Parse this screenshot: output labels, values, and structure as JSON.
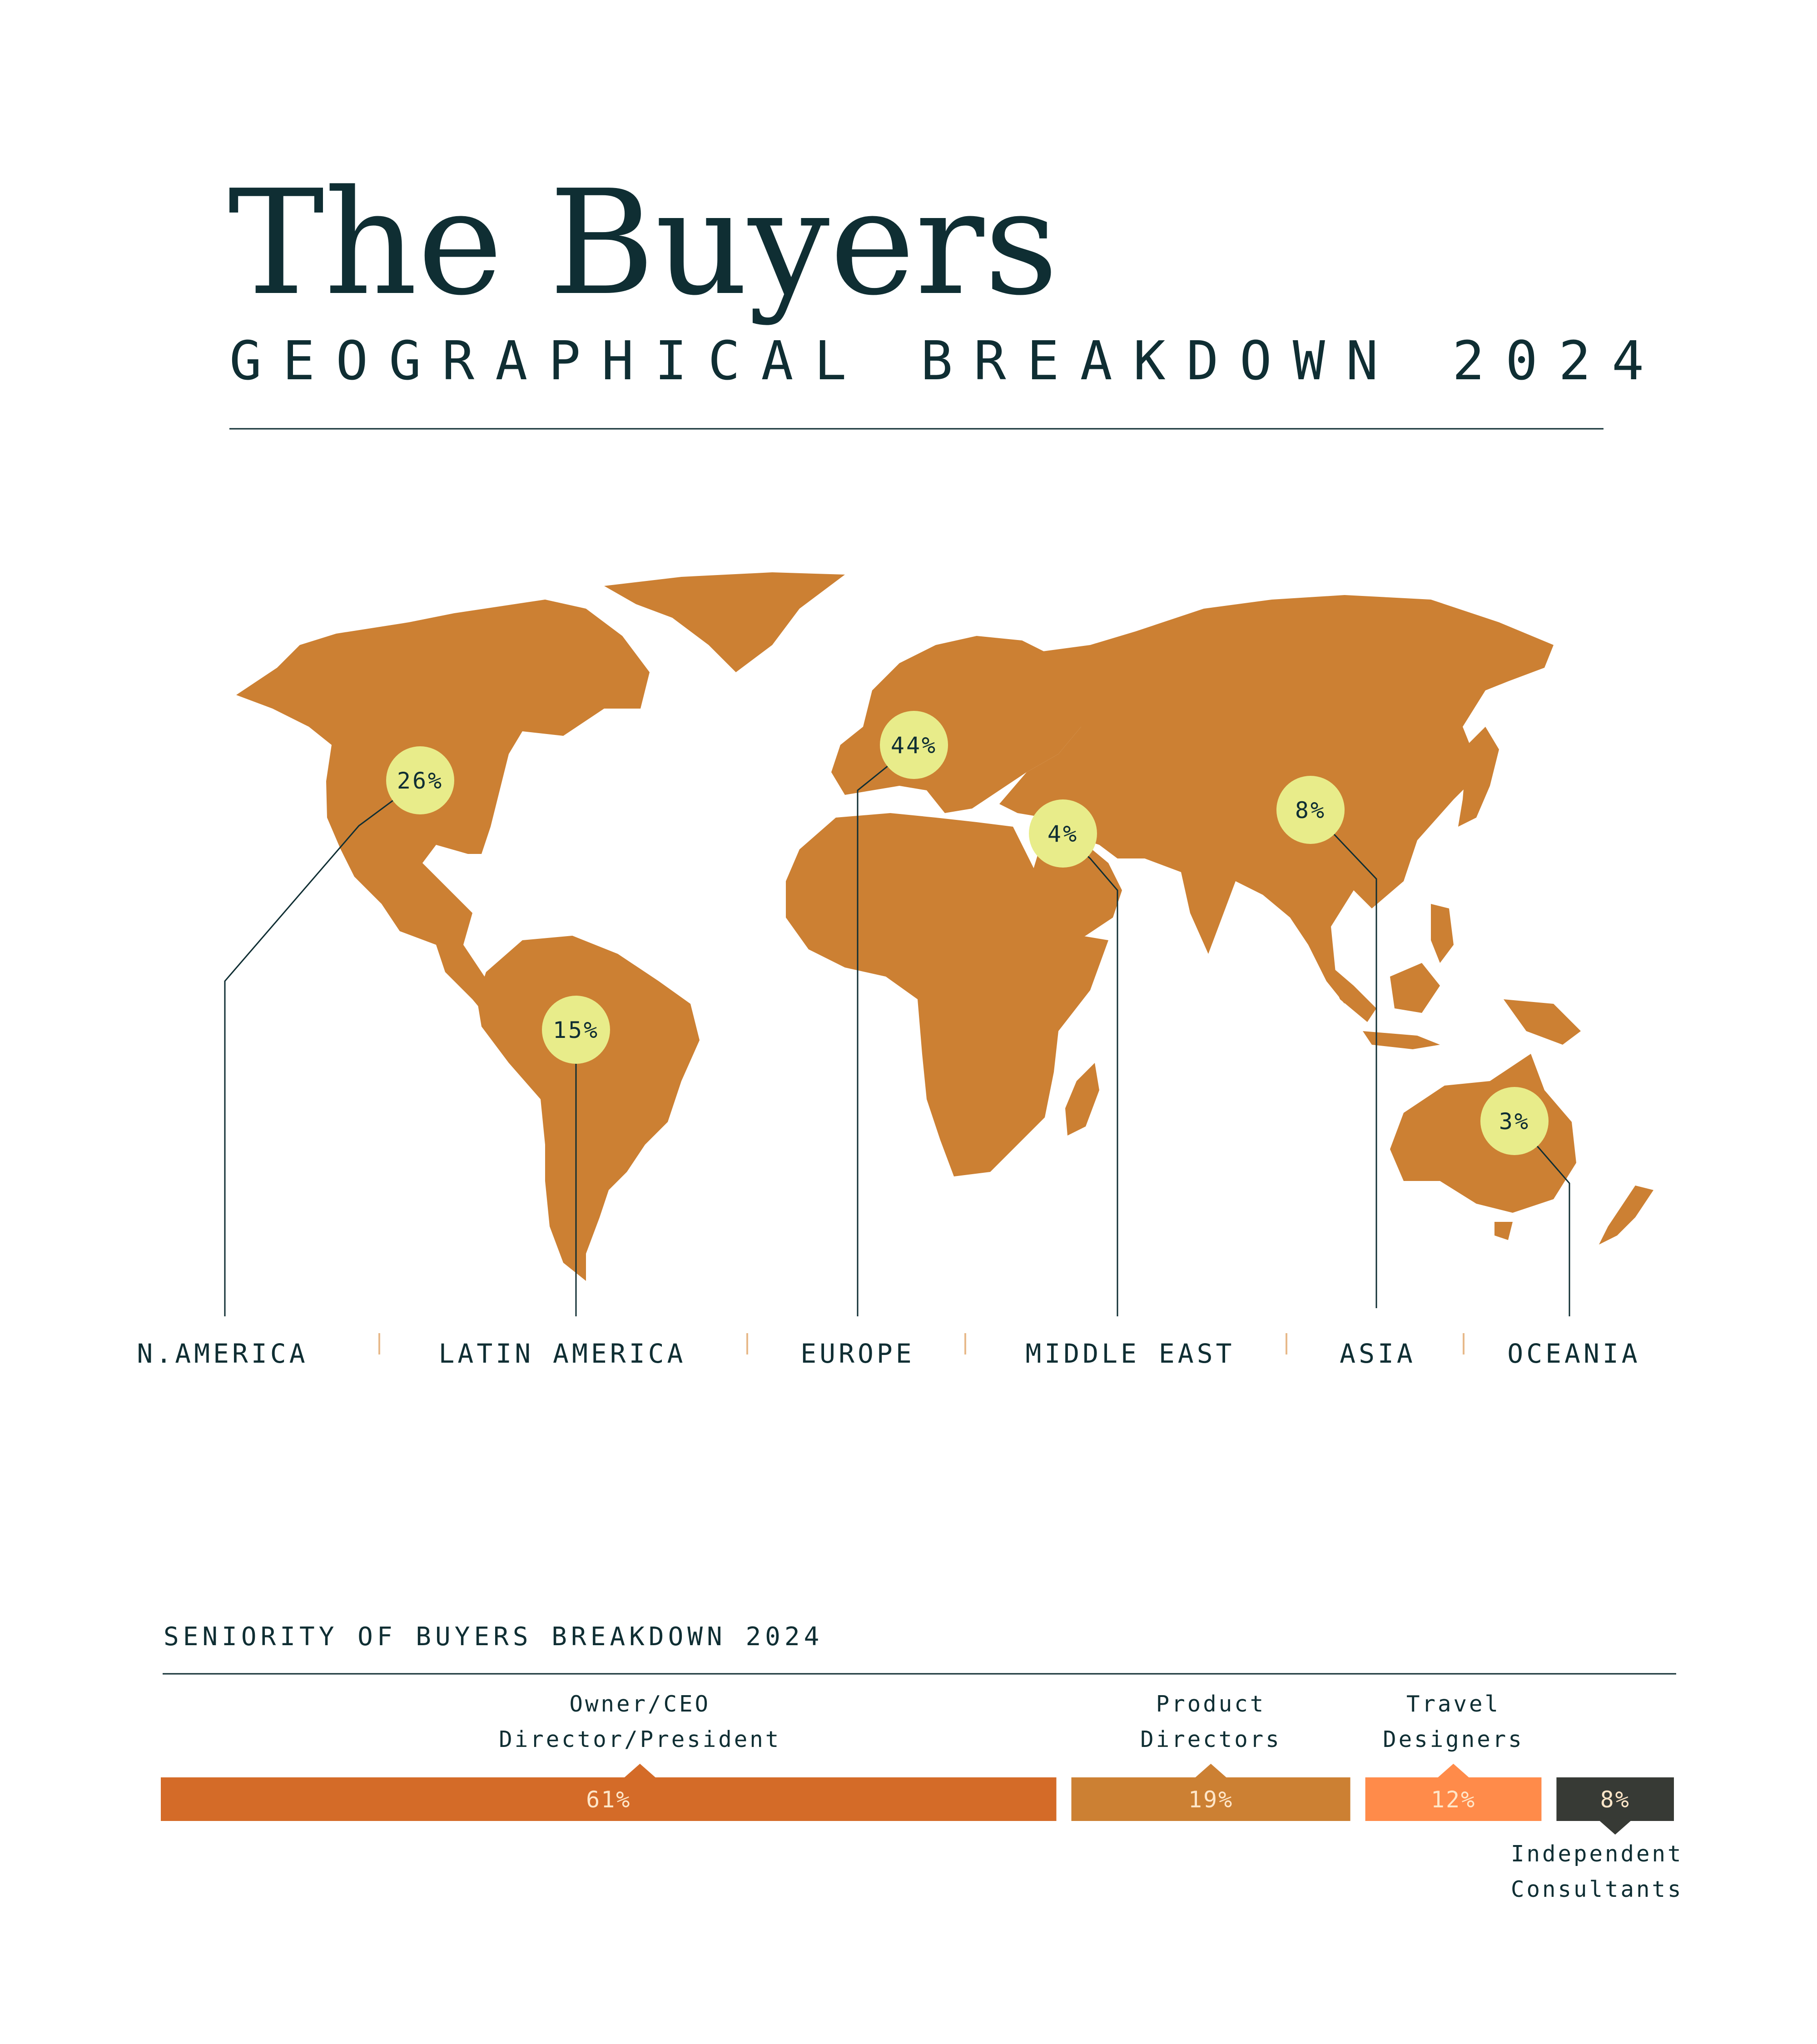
{
  "title": "The Buyers",
  "subtitle": "GEOGRAPHICAL BREAKDOWN 2024",
  "colors": {
    "ink": "#0f2e33",
    "land": "#cc8033",
    "bubble": "#e8ec8a",
    "owner": "#d46b28",
    "product": "#cc8033",
    "travel": "#ff8b4a",
    "independent": "#373a35",
    "bar_text_light": "#ffe6c8"
  },
  "chart_data": [
    {
      "type": "map-bubbles",
      "title": "GEOGRAPHICAL BREAKDOWN 2024",
      "unit": "%",
      "regions": [
        {
          "label": "N.AMERICA",
          "value": 26,
          "display": "26%"
        },
        {
          "label": "LATIN AMERICA",
          "value": 15,
          "display": "15%"
        },
        {
          "label": "EUROPE",
          "value": 44,
          "display": "44%"
        },
        {
          "label": "MIDDLE EAST",
          "value": 4,
          "display": "4%"
        },
        {
          "label": "ASIA",
          "value": 8,
          "display": "8%"
        },
        {
          "label": "OCEANIA",
          "value": 3,
          "display": "3%"
        }
      ]
    },
    {
      "type": "bar",
      "orientation": "stacked-horizontal",
      "title": "SENIORITY OF BUYERS BREAKDOWN 2024",
      "unit": "%",
      "segments": [
        {
          "label_lines": [
            "Owner/CEO",
            "Director/President"
          ],
          "value": 61,
          "display": "61%",
          "color_key": "owner",
          "label_position": "above"
        },
        {
          "label_lines": [
            "Product",
            "Directors"
          ],
          "value": 19,
          "display": "19%",
          "color_key": "product",
          "label_position": "above"
        },
        {
          "label_lines": [
            "Travel",
            "Designers"
          ],
          "value": 12,
          "display": "12%",
          "color_key": "travel",
          "label_position": "above"
        },
        {
          "label_lines": [
            "Independent",
            "Consultants"
          ],
          "value": 8,
          "display": "8%",
          "color_key": "independent",
          "label_position": "below"
        }
      ]
    }
  ]
}
